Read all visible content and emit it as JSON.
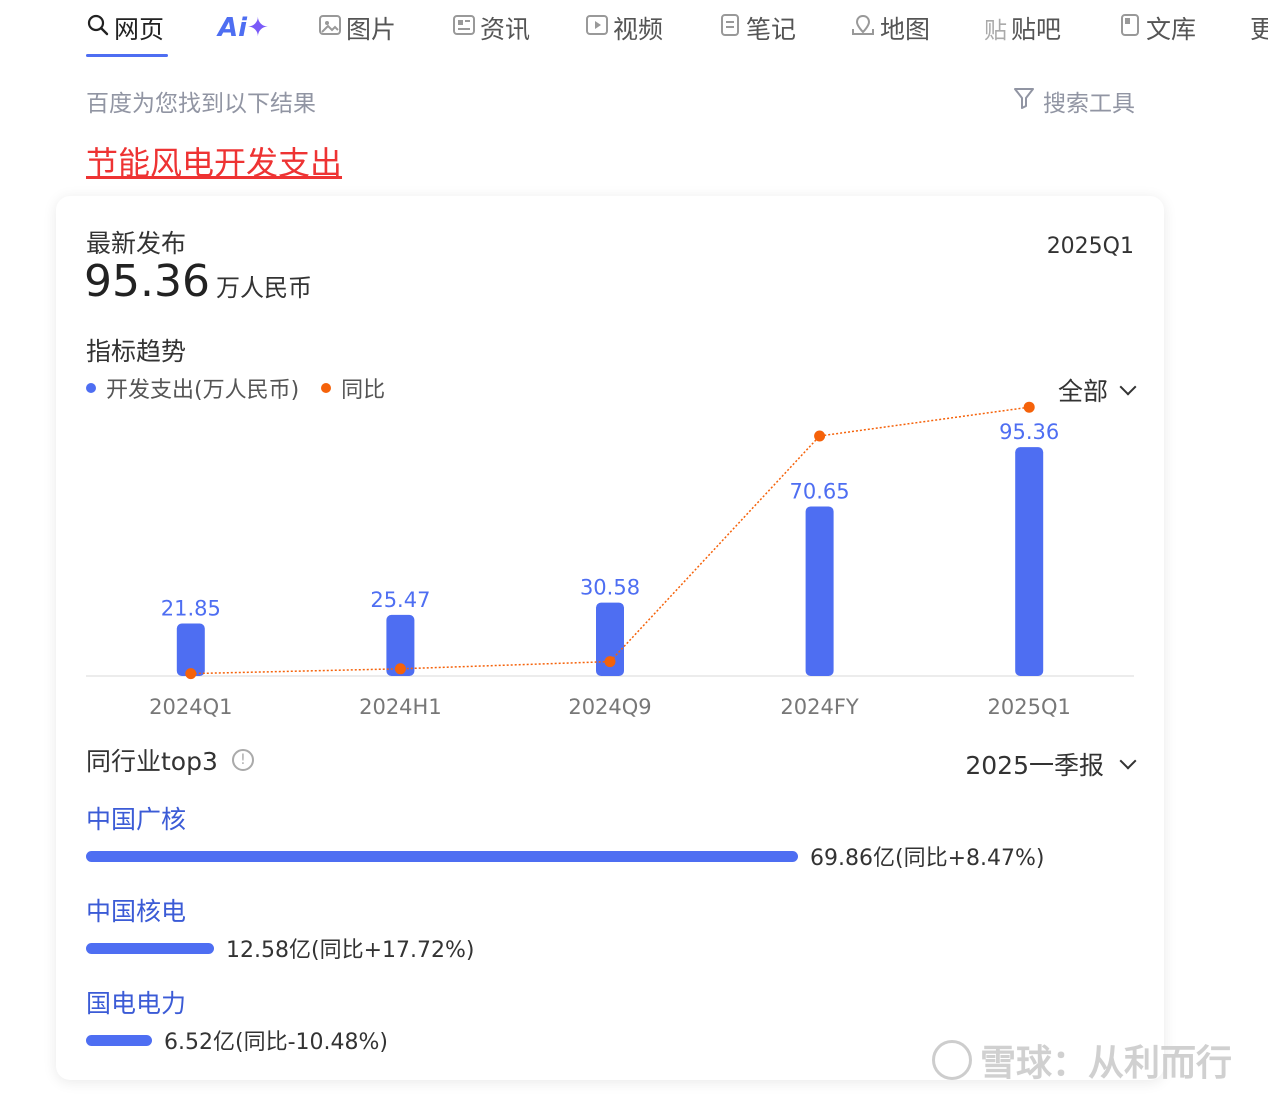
{
  "tabs": [
    {
      "label": "网页",
      "icon": "search-icon",
      "active": true
    },
    {
      "label": "",
      "icon": "ai-logo",
      "logo_text": "Ai"
    },
    {
      "label": "图片",
      "icon": "image-icon"
    },
    {
      "label": "资讯",
      "icon": "news-icon"
    },
    {
      "label": "视频",
      "icon": "video-icon"
    },
    {
      "label": "笔记",
      "icon": "note-icon"
    },
    {
      "label": "地图",
      "icon": "map-icon"
    },
    {
      "label": "贴吧",
      "icon": "tieba-icon"
    },
    {
      "label": "文库",
      "icon": "doc-icon"
    },
    {
      "label": "更",
      "icon": ""
    }
  ],
  "result_hint": "百度为您找到以下结果",
  "search_tools": "搜索工具",
  "result_title": "节能风电开发支出",
  "card": {
    "latest_label": "最新发布",
    "period": "2025Q1",
    "value": "95.36",
    "unit": "万人民币",
    "trend_title": "指标趋势",
    "legend": [
      {
        "label": "开发支出(万人民币)",
        "color": "#4e6ef2"
      },
      {
        "label": "同比",
        "color": "#f5620a"
      }
    ],
    "range_select": "全部",
    "peer_title": "同行业top3",
    "report_select": "2025一季报",
    "peers": [
      {
        "name": "中国广核",
        "value_label": "69.86亿(同比+8.47%)",
        "value": 69.86
      },
      {
        "name": "中国核电",
        "value_label": "12.58亿(同比+17.72%)",
        "value": 12.58
      },
      {
        "name": "国电电力",
        "value_label": "6.52亿(同比-10.48%)",
        "value": 6.52
      }
    ]
  },
  "watermark": "雪球：从利而行",
  "chart_data": {
    "type": "bar",
    "categories": [
      "2024Q1",
      "2024H1",
      "2024Q9",
      "2024FY",
      "2025Q1"
    ],
    "series": [
      {
        "name": "开发支出(万人民币)",
        "type": "bar",
        "values": [
          21.85,
          25.47,
          30.58,
          70.65,
          95.36
        ],
        "labels": [
          "21.85",
          "25.47",
          "30.58",
          "70.65",
          "95.36"
        ],
        "color": "#4e6ef2"
      },
      {
        "name": "同比",
        "type": "line",
        "values": [
          1,
          3,
          6,
          100,
          112
        ],
        "color": "#f5620a"
      }
    ],
    "ylim": [
      0,
      100
    ],
    "grid": false,
    "legend": "top-left"
  }
}
